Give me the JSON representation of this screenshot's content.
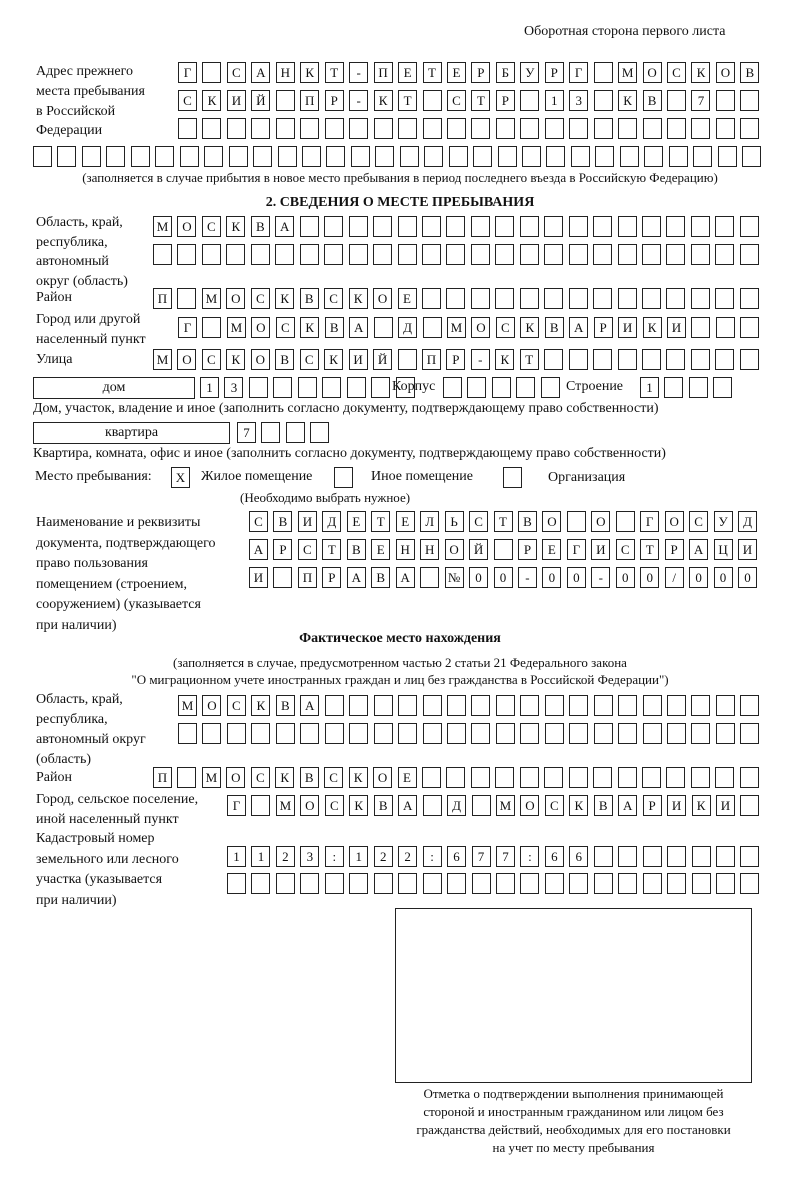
{
  "page_header": "Оборотная сторона первого листа",
  "previous_address": {
    "label": "Адрес прежнего места пребывания в Российской Федерации",
    "label_lines": [
      "Адрес прежнего",
      "места пребывания",
      "в Российской",
      "Федерации"
    ],
    "rows": [
      [
        "Г",
        "",
        "С",
        "А",
        "Н",
        "К",
        "Т",
        "-",
        "П",
        "Е",
        "Т",
        "Е",
        "Р",
        "Б",
        "У",
        "Р",
        "Г",
        "",
        "М",
        "О",
        "С",
        "К",
        "О",
        "В"
      ],
      [
        "С",
        "К",
        "И",
        "Й",
        "",
        "П",
        "Р",
        "-",
        "К",
        "Т",
        "",
        "С",
        "Т",
        "Р",
        "",
        "1",
        "3",
        "",
        "К",
        "В",
        "",
        "7",
        "",
        ""
      ],
      [
        "",
        "",
        "",
        "",
        "",
        "",
        "",
        "",
        "",
        "",
        "",
        "",
        "",
        "",
        "",
        "",
        "",
        "",
        "",
        "",
        "",
        "",
        "",
        ""
      ],
      [
        "",
        "",
        "",
        "",
        "",
        "",
        "",
        "",
        "",
        "",
        "",
        "",
        "",
        "",
        "",
        "",
        "",
        "",
        "",
        "",
        "",
        "",
        "",
        "",
        "",
        "",
        "",
        "",
        "",
        ""
      ]
    ],
    "note": "(заполняется в случае прибытия в новое место пребывания в период последнего въезда в Российскую Федерацию)"
  },
  "section2": {
    "title": "2. СВЕДЕНИЯ О МЕСТЕ ПРЕБЫВАНИЯ",
    "region": {
      "label_lines": [
        "Область, край,",
        "республика,",
        "автономный",
        "округ (область)"
      ],
      "rows": [
        [
          "М",
          "О",
          "С",
          "К",
          "В",
          "А",
          "",
          "",
          "",
          "",
          "",
          "",
          "",
          "",
          "",
          "",
          "",
          "",
          "",
          "",
          "",
          "",
          "",
          "",
          ""
        ],
        [
          "",
          "",
          "",
          "",
          "",
          "",
          "",
          "",
          "",
          "",
          "",
          "",
          "",
          "",
          "",
          "",
          "",
          "",
          "",
          "",
          "",
          "",
          "",
          "",
          ""
        ]
      ]
    },
    "district": {
      "label": "Район",
      "cells": [
        "П",
        "",
        "М",
        "О",
        "С",
        "К",
        "В",
        "С",
        "К",
        "О",
        "Е",
        "",
        "",
        "",
        "",
        "",
        "",
        "",
        "",
        "",
        "",
        "",
        "",
        "",
        ""
      ]
    },
    "city": {
      "label_lines": [
        "Город или другой",
        "населенный пункт"
      ],
      "cells": [
        "Г",
        "",
        "М",
        "О",
        "С",
        "К",
        "В",
        "А",
        "",
        "Д",
        "",
        "М",
        "О",
        "С",
        "К",
        "В",
        "А",
        "Р",
        "И",
        "К",
        "И",
        "",
        "",
        ""
      ]
    },
    "street": {
      "label": "Улица",
      "cells": [
        "М",
        "О",
        "С",
        "К",
        "О",
        "В",
        "С",
        "К",
        "И",
        "Й",
        "",
        "П",
        "Р",
        "-",
        "К",
        "Т",
        "",
        "",
        "",
        "",
        "",
        "",
        "",
        "",
        ""
      ]
    },
    "house": {
      "type": "дом",
      "cells": [
        "1",
        "3",
        "",
        "",
        "",
        "",
        "",
        "",
        ""
      ],
      "korpus_label": "Корпус",
      "korpus_cells": [
        "",
        "",
        "",
        "",
        ""
      ],
      "building_label": "Строение",
      "building_cells": [
        "1",
        "",
        "",
        ""
      ],
      "note": "Дом, участок, владение и иное (заполнить согласно документу, подтверждающему право собственности)"
    },
    "apartment": {
      "type": "квартира",
      "cells": [
        "7",
        "",
        "",
        ""
      ],
      "note": "Квартира, комната, офис и иное (заполнить согласно документу, подтверждающему право собственности)"
    },
    "stay_place": {
      "label": "Место пребывания:",
      "options": [
        {
          "label": "Жилое помещение",
          "mark": "X",
          "checked": true
        },
        {
          "label": "Иное помещение",
          "mark": "",
          "checked": false
        },
        {
          "label": "Организация",
          "mark": "",
          "checked": false
        }
      ],
      "note": "(Необходимо выбрать нужное)"
    },
    "document": {
      "label_lines": [
        "Наименование и реквизиты",
        "документа, подтверждающего",
        "право пользования",
        "помещением (строением,",
        "сооружением) (указывается",
        "при наличии)"
      ],
      "rows": [
        [
          "С",
          "В",
          "И",
          "Д",
          "Е",
          "Т",
          "Е",
          "Л",
          "Ь",
          "С",
          "Т",
          "В",
          "О",
          "",
          "О",
          "",
          "Г",
          "О",
          "С",
          "У",
          "Д"
        ],
        [
          "А",
          "Р",
          "С",
          "Т",
          "В",
          "Е",
          "Н",
          "Н",
          "О",
          "Й",
          "",
          "Р",
          "Е",
          "Г",
          "И",
          "С",
          "Т",
          "Р",
          "А",
          "Ц",
          "И"
        ],
        [
          "И",
          "",
          "П",
          "Р",
          "А",
          "В",
          "А",
          "",
          "№",
          "0",
          "0",
          "-",
          "0",
          "0",
          "-",
          "0",
          "0",
          "/",
          "0",
          "0",
          "0"
        ]
      ]
    }
  },
  "actual_location": {
    "title": "Фактическое место нахождения",
    "note_lines": [
      "(заполняется в случае, предусмотренном частью 2 статьи 21 Федерального закона",
      "\"О миграционном учете иностранных граждан и лиц без гражданства в Российской Федерации\")"
    ],
    "region": {
      "label_lines": [
        "Область, край,",
        "республика,",
        "автономный округ",
        "(область)"
      ],
      "rows": [
        [
          "М",
          "О",
          "С",
          "К",
          "В",
          "А",
          "",
          "",
          "",
          "",
          "",
          "",
          "",
          "",
          "",
          "",
          "",
          "",
          "",
          "",
          "",
          "",
          "",
          ""
        ],
        [
          "",
          "",
          "",
          "",
          "",
          "",
          "",
          "",
          "",
          "",
          "",
          "",
          "",
          "",
          "",
          "",
          "",
          "",
          "",
          "",
          "",
          "",
          "",
          ""
        ]
      ]
    },
    "district": {
      "label": "Район",
      "cells": [
        "П",
        "",
        "М",
        "О",
        "С",
        "К",
        "В",
        "С",
        "К",
        "О",
        "Е",
        "",
        "",
        "",
        "",
        "",
        "",
        "",
        "",
        "",
        "",
        "",
        "",
        "",
        ""
      ]
    },
    "city": {
      "label_lines": [
        "Город, сельское поселение,",
        "иной населенный пункт"
      ],
      "cells": [
        "Г",
        "",
        "М",
        "О",
        "С",
        "К",
        "В",
        "А",
        "",
        "Д",
        "",
        "М",
        "О",
        "С",
        "К",
        "В",
        "А",
        "Р",
        "И",
        "К",
        "И",
        ""
      ]
    },
    "cadastral": {
      "label_lines": [
        "Кадастровый номер",
        "земельного или лесного",
        "участка (указывается",
        "при наличии)"
      ],
      "rows": [
        [
          "1",
          "1",
          "2",
          "3",
          ":",
          "1",
          "2",
          "2",
          ":",
          "6",
          "7",
          "7",
          ":",
          "6",
          "6",
          "",
          "",
          "",
          "",
          "",
          "",
          ""
        ],
        [
          "",
          "",
          "",
          "",
          "",
          "",
          "",
          "",
          "",
          "",
          "",
          "",
          "",
          "",
          "",
          "",
          "",
          "",
          "",
          "",
          "",
          ""
        ]
      ]
    }
  },
  "stamp": {
    "caption_lines": [
      "Отметка о подтверждении выполнения принимающей",
      "стороной и иностранным гражданином или лицом без",
      "гражданства действий, необходимых для его постановки",
      "на учет по месту пребывания"
    ]
  }
}
